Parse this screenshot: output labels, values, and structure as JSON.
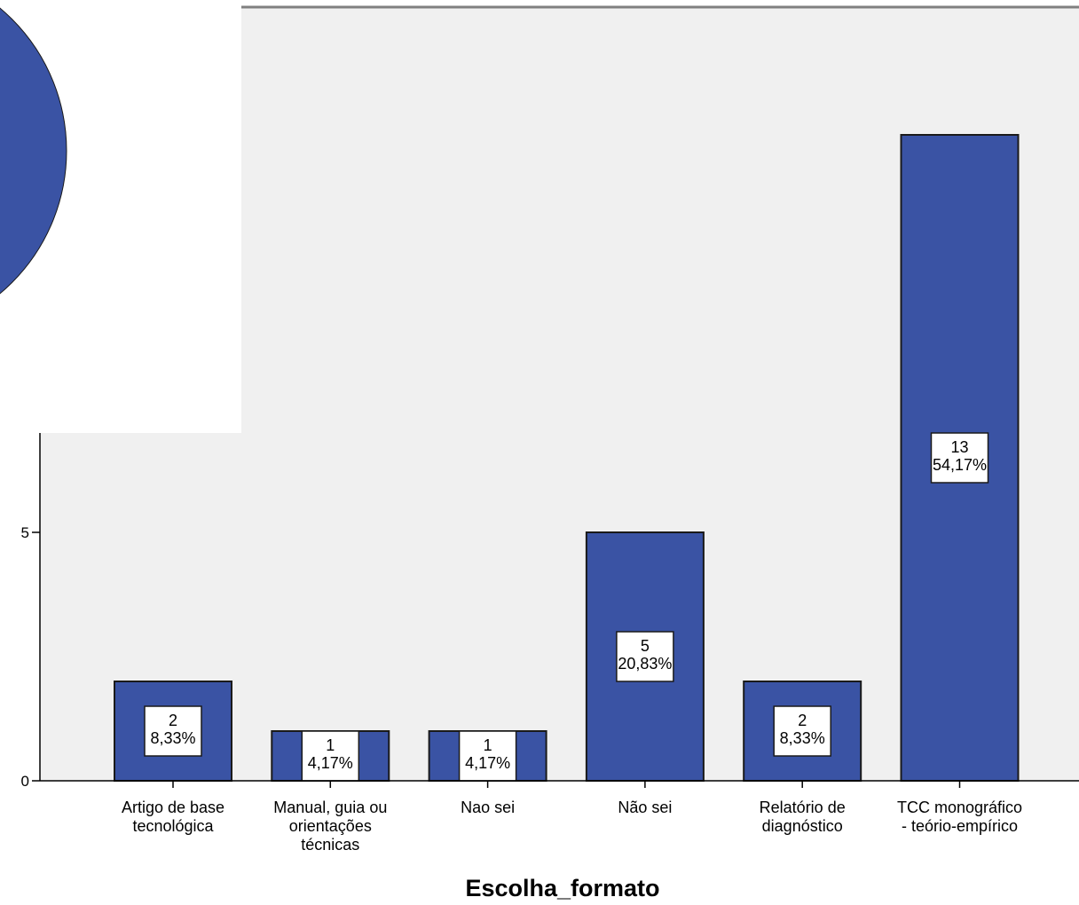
{
  "chart_data": {
    "type": "bar",
    "categories": [
      "Artigo de base tecnológica",
      "Manual, guia ou orientações técnicas",
      "Nao sei",
      "Não sei",
      "Relatório de diagnóstico",
      "TCC monográfico - teório-empírico"
    ],
    "category_lines": [
      [
        "Artigo de base",
        "tecnológica"
      ],
      [
        "Manual, guia ou",
        "orientações",
        "técnicas"
      ],
      [
        "Nao sei"
      ],
      [
        "Não sei"
      ],
      [
        "Relatório de",
        "diagnóstico"
      ],
      [
        "TCC monográfico",
        "- teório-empírico"
      ]
    ],
    "values": [
      2,
      1,
      1,
      5,
      2,
      13
    ],
    "data_labels": [
      [
        "2",
        "8,33%"
      ],
      [
        "1",
        "4,17%"
      ],
      [
        "1",
        "4,17%"
      ],
      [
        "5",
        "20,83%"
      ],
      [
        "2",
        "8,33%"
      ],
      [
        "13",
        "54,17%"
      ]
    ],
    "xlabel": "Escolha_formato",
    "ylabel": "",
    "y_ticks": [
      0,
      5
    ],
    "colors": {
      "bar": "#3a53a4",
      "plot_background": "#f0f0f0",
      "overlay_circle": "#3a53a4"
    }
  }
}
